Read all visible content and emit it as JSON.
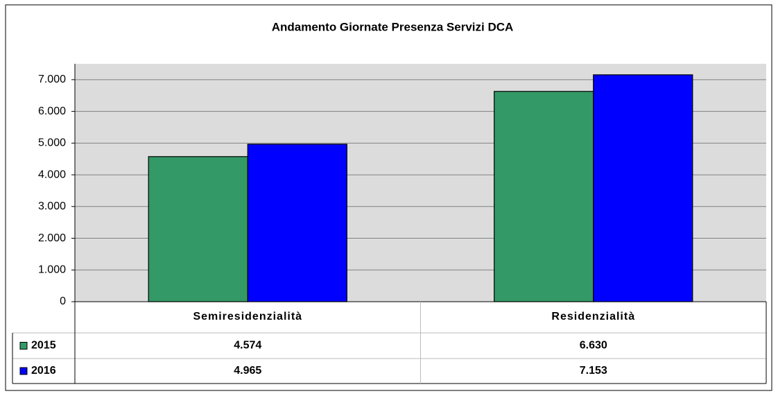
{
  "chart_data": {
    "type": "bar",
    "title": "Andamento Giornate Presenza Servizi DCA",
    "categories": [
      "Semiresidenzialità",
      "Residenzialità"
    ],
    "series": [
      {
        "name": "2015",
        "color": "#339966",
        "values": [
          4574,
          6630
        ],
        "value_labels": [
          "4.574",
          "6.630"
        ]
      },
      {
        "name": "2016",
        "color": "#0000ff",
        "values": [
          4965,
          7153
        ],
        "value_labels": [
          "4.965",
          "7.153"
        ]
      }
    ],
    "ylim": [
      0,
      7500
    ],
    "yticks": [
      0,
      {
        "value": 1000,
        "label": "1.000"
      },
      {
        "value": 2000,
        "label": "2.000"
      },
      {
        "value": 3000,
        "label": "3.000"
      },
      {
        "value": 4000,
        "label": "4.000"
      },
      {
        "value": 5000,
        "label": "5.000"
      },
      {
        "value": 6000,
        "label": "6.000"
      },
      {
        "value": 7000,
        "label": "7.000"
      }
    ],
    "grid": true
  }
}
